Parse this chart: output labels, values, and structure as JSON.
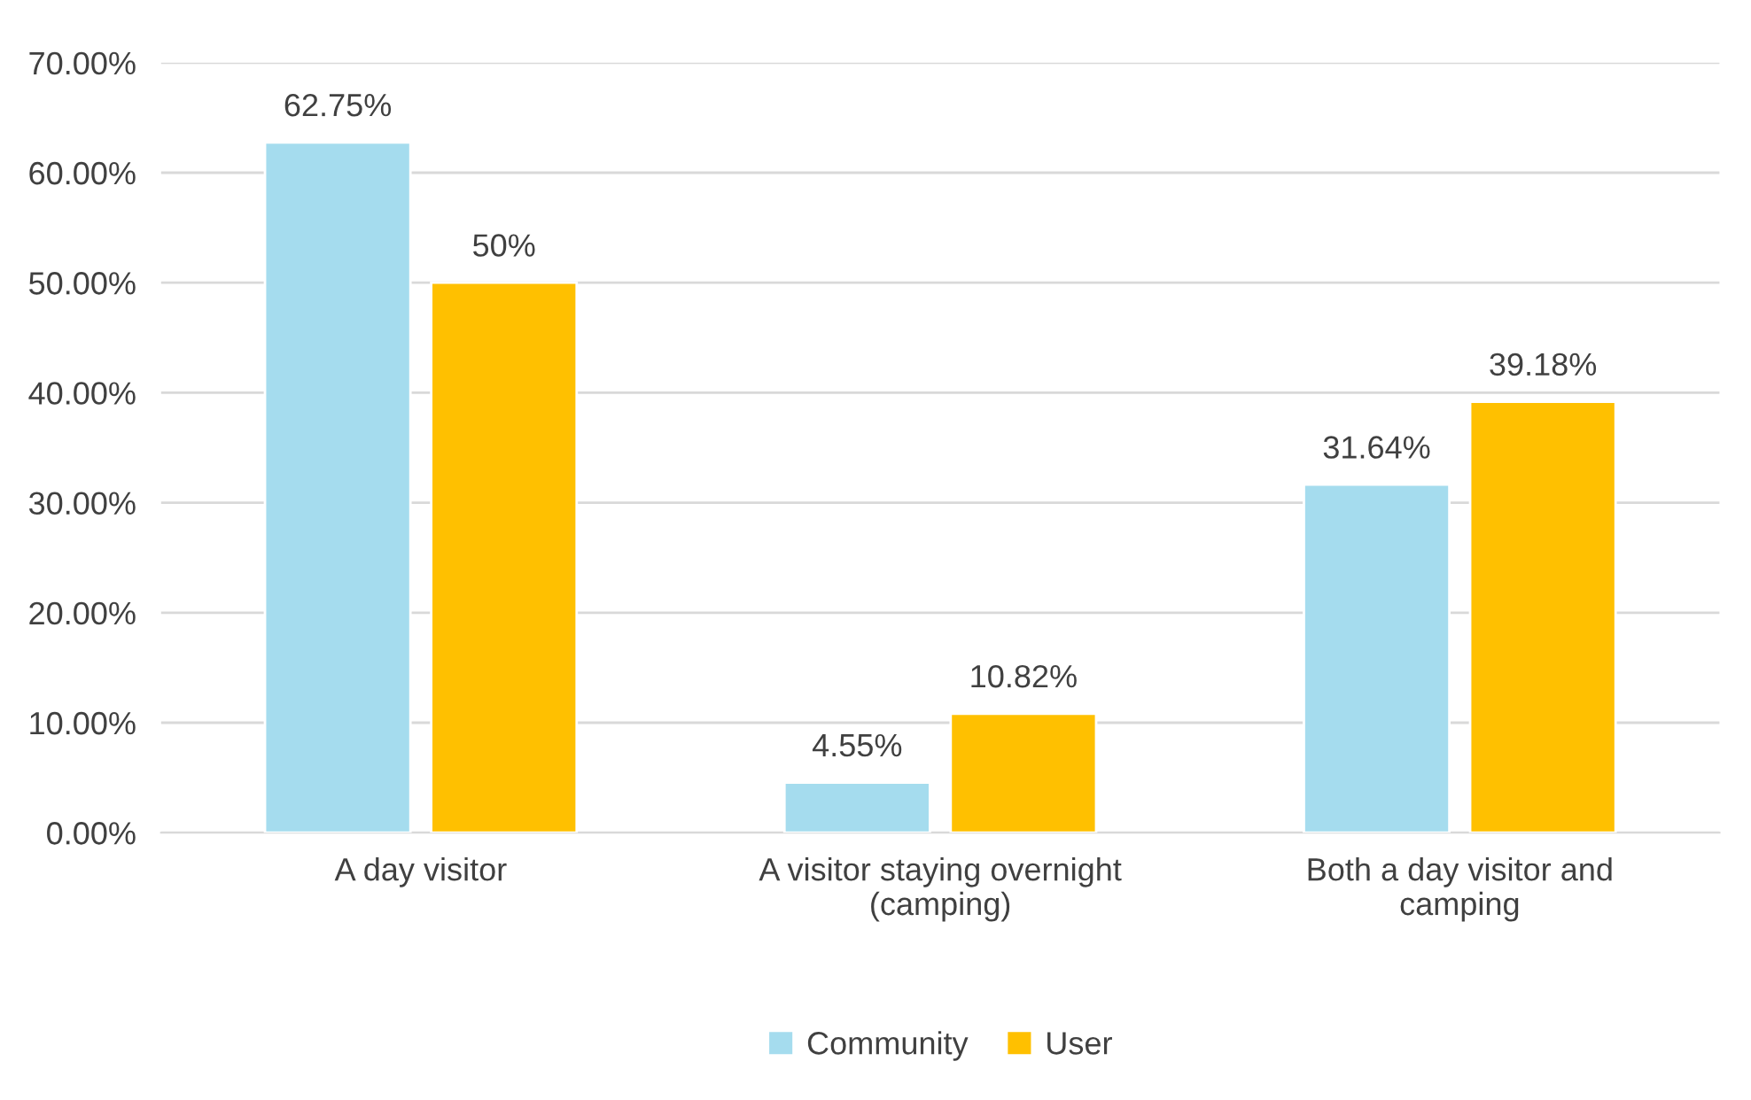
{
  "chart_data": {
    "type": "bar",
    "categories": [
      "A day visitor",
      "A visitor staying overnight (camping)",
      "Both a day visitor and camping"
    ],
    "series": [
      {
        "name": "Community",
        "color": "#a5dcee",
        "values": [
          62.75,
          4.55,
          31.64
        ],
        "value_labels": [
          "62.75%",
          "4.55%",
          "31.64%"
        ]
      },
      {
        "name": "User",
        "color": "#ffc000",
        "values": [
          50,
          10.82,
          39.18
        ],
        "value_labels": [
          "50%",
          "10.82%",
          "39.18%"
        ]
      }
    ],
    "ylim": [
      0,
      70
    ],
    "yticks": [
      {
        "value": 0,
        "label": "0.00%"
      },
      {
        "value": 10,
        "label": "10.00%"
      },
      {
        "value": 20,
        "label": "20.00%"
      },
      {
        "value": 30,
        "label": "30.00%"
      },
      {
        "value": 40,
        "label": "40.00%"
      },
      {
        "value": 50,
        "label": "50.00%"
      },
      {
        "value": 60,
        "label": "60.00%"
      },
      {
        "value": 70,
        "label": "70.00%"
      }
    ],
    "grid": "y",
    "legend": "bottom"
  }
}
